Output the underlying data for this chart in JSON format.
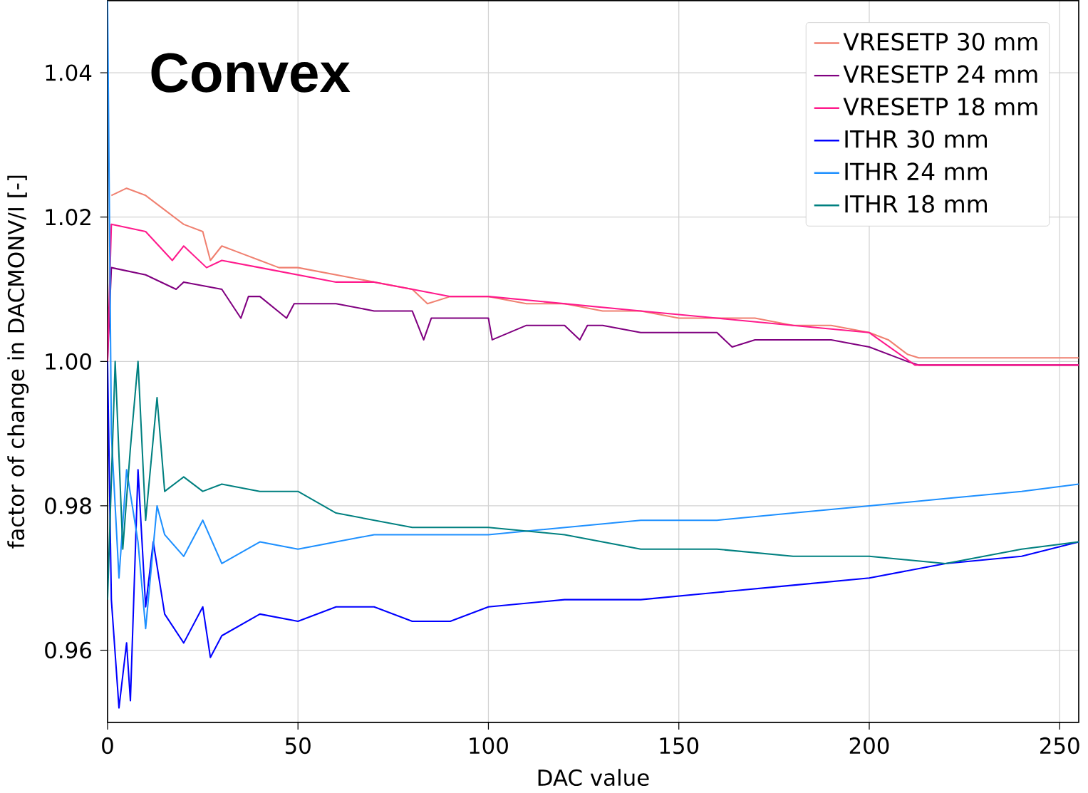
{
  "chart_data": {
    "type": "line",
    "xlabel": "DAC value",
    "ylabel": "factor of change in DACMONV/I [-]",
    "annotations": [
      "Convex"
    ],
    "xlim": [
      0,
      255
    ],
    "ylim": [
      0.95,
      1.05
    ],
    "xticks": [
      0,
      50,
      100,
      150,
      200,
      250
    ],
    "yticks": [
      0.96,
      0.98,
      {
        "value": 1.0,
        "label": "1.00"
      },
      1.02,
      1.04
    ],
    "grid": true,
    "legend": "top right",
    "marker": "none",
    "line_style": "solid",
    "series": [
      {
        "name": "VRESETP 30 mm",
        "color": "#f08070",
        "x": [
          1,
          5,
          10,
          15,
          20,
          25,
          27,
          30,
          35,
          40,
          45,
          50,
          60,
          70,
          80,
          84,
          90,
          100,
          110,
          120,
          130,
          140,
          150,
          160,
          170,
          180,
          190,
          200,
          205,
          210,
          213,
          255
        ],
        "values": [
          1.023,
          1.024,
          1.023,
          1.021,
          1.019,
          1.018,
          1.014,
          1.016,
          1.015,
          1.014,
          1.013,
          1.013,
          1.012,
          1.011,
          1.01,
          1.008,
          1.009,
          1.009,
          1.008,
          1.008,
          1.007,
          1.007,
          1.006,
          1.006,
          1.006,
          1.005,
          1.005,
          1.004,
          1.003,
          1.001,
          1.0005,
          1.0005
        ]
      },
      {
        "name": "VRESETP 24 mm",
        "color": "#800080",
        "x": [
          0,
          1,
          10,
          18,
          20,
          30,
          35,
          37,
          40,
          47,
          49,
          50,
          60,
          70,
          80,
          83,
          85,
          90,
          100,
          101,
          110,
          120,
          124,
          126,
          130,
          140,
          150,
          160,
          164,
          170,
          180,
          190,
          200,
          210,
          213,
          255
        ],
        "values": [
          1.0,
          1.013,
          1.012,
          1.01,
          1.011,
          1.01,
          1.006,
          1.009,
          1.009,
          1.006,
          1.008,
          1.008,
          1.008,
          1.007,
          1.007,
          1.003,
          1.006,
          1.006,
          1.006,
          1.003,
          1.005,
          1.005,
          1.003,
          1.005,
          1.005,
          1.004,
          1.004,
          1.004,
          1.002,
          1.003,
          1.003,
          1.003,
          1.002,
          1.0,
          0.9995,
          0.9995
        ]
      },
      {
        "name": "VRESETP 18 mm",
        "color": "#ff1a8c",
        "x": [
          0,
          1,
          10,
          17,
          20,
          26,
          30,
          40,
          50,
          60,
          70,
          80,
          90,
          100,
          120,
          140,
          160,
          180,
          200,
          212,
          255
        ],
        "values": [
          1.0,
          1.019,
          1.018,
          1.014,
          1.016,
          1.013,
          1.014,
          1.013,
          1.012,
          1.011,
          1.011,
          1.01,
          1.009,
          1.009,
          1.008,
          1.007,
          1.006,
          1.005,
          1.004,
          0.9995,
          0.9995
        ]
      },
      {
        "name": "ITHR 30 mm",
        "color": "#0000ff",
        "x": [
          0,
          1,
          3,
          5,
          6,
          8,
          10,
          12,
          15,
          20,
          25,
          27,
          30,
          40,
          50,
          60,
          70,
          80,
          90,
          100,
          120,
          140,
          160,
          180,
          200,
          220,
          240,
          255
        ],
        "values": [
          1.0,
          0.967,
          0.952,
          0.961,
          0.953,
          0.985,
          0.966,
          0.975,
          0.965,
          0.961,
          0.966,
          0.959,
          0.962,
          0.965,
          0.964,
          0.966,
          0.966,
          0.964,
          0.964,
          0.966,
          0.967,
          0.967,
          0.968,
          0.969,
          0.97,
          0.972,
          0.973,
          0.975
        ]
      },
      {
        "name": "ITHR 24 mm",
        "color": "#1e90ff",
        "x": [
          0,
          1,
          3,
          5,
          8,
          10,
          13,
          15,
          20,
          25,
          30,
          40,
          50,
          60,
          70,
          80,
          100,
          120,
          140,
          160,
          180,
          200,
          220,
          240,
          255
        ],
        "values": [
          1.05,
          0.99,
          0.97,
          0.985,
          0.975,
          0.963,
          0.98,
          0.976,
          0.973,
          0.978,
          0.972,
          0.975,
          0.974,
          0.975,
          0.976,
          0.976,
          0.976,
          0.977,
          0.978,
          0.978,
          0.979,
          0.98,
          0.981,
          0.982,
          0.983
        ]
      },
      {
        "name": "ITHR 18 mm",
        "color": "#008080",
        "x": [
          0,
          2,
          4,
          6,
          8,
          10,
          13,
          15,
          20,
          25,
          30,
          40,
          50,
          60,
          70,
          80,
          90,
          100,
          120,
          140,
          160,
          180,
          200,
          220,
          240,
          255
        ],
        "values": [
          0.967,
          1.0,
          0.974,
          0.988,
          1.0,
          0.978,
          0.995,
          0.982,
          0.984,
          0.982,
          0.983,
          0.982,
          0.982,
          0.979,
          0.978,
          0.977,
          0.977,
          0.977,
          0.976,
          0.974,
          0.974,
          0.973,
          0.973,
          0.972,
          0.974,
          0.975
        ]
      }
    ]
  }
}
